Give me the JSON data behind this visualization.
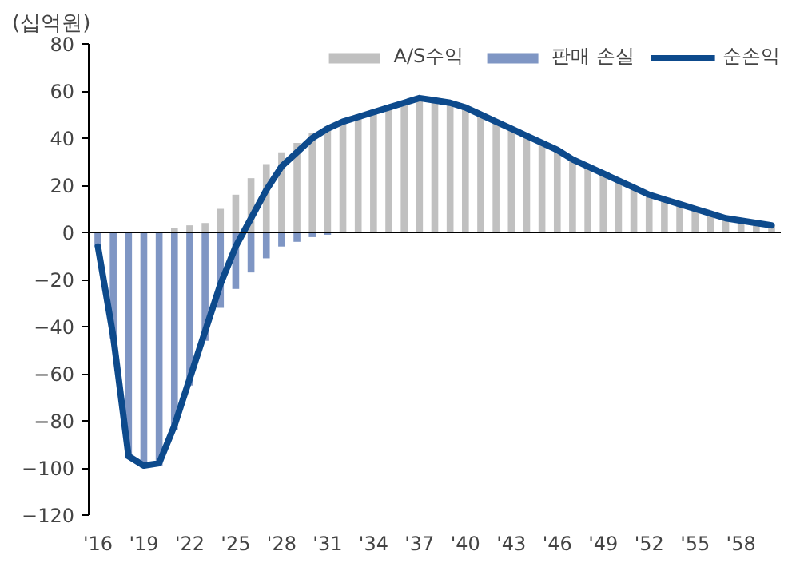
{
  "chart_data": {
    "type": "bar",
    "ylabel": "(십억원)",
    "categories": [
      "'16",
      null,
      null,
      "'19",
      null,
      null,
      "'22",
      null,
      null,
      "'25",
      null,
      null,
      "'28",
      null,
      null,
      "'31",
      null,
      null,
      "'34",
      null,
      null,
      "'37",
      null,
      null,
      "'40",
      null,
      null,
      "'43",
      null,
      null,
      "'46",
      null,
      null,
      "'49",
      null,
      null,
      "'52",
      null,
      null,
      "'55",
      null,
      null,
      "'58",
      null,
      null
    ],
    "series": [
      {
        "name": "A/S수익",
        "color": "#c0c0c0",
        "values": [
          null,
          null,
          null,
          null,
          null,
          2,
          3,
          4,
          10,
          16,
          23,
          29,
          34,
          38,
          42,
          45,
          48,
          50,
          52,
          54,
          55,
          56,
          55,
          54,
          53,
          50,
          47,
          44,
          41,
          38,
          35,
          31,
          28,
          25,
          22,
          19,
          16,
          14,
          12,
          10,
          8,
          7,
          5,
          4,
          3
        ]
      },
      {
        "name": "판매 손실",
        "color": "#7f96c4",
        "values": [
          -6,
          -45,
          -96,
          -100,
          -99,
          -84,
          -65,
          -46,
          -32,
          -24,
          -17,
          -11,
          -6,
          -4,
          -2,
          -1,
          null,
          null,
          null,
          null,
          null,
          null,
          null,
          null,
          null,
          null,
          null,
          null,
          null,
          null,
          null,
          null,
          null,
          null,
          null,
          null,
          null,
          null,
          null,
          null,
          null,
          null,
          null,
          null,
          null
        ]
      },
      {
        "name": "순손익",
        "type": "line",
        "color": "#0d4a8c",
        "values": [
          -6,
          -44,
          -95,
          -99,
          -98,
          -82,
          -62,
          -42,
          -22,
          -6,
          6,
          18,
          28,
          34,
          40,
          44,
          47,
          49,
          51,
          53,
          55,
          57,
          56,
          55,
          53,
          50,
          47,
          44,
          41,
          38,
          35,
          31,
          28,
          25,
          22,
          19,
          16,
          14,
          12,
          10,
          8,
          6,
          5,
          4,
          3
        ]
      }
    ],
    "ylim": [
      -120,
      80
    ],
    "yticks": [
      -120,
      -100,
      -80,
      -60,
      -40,
      -20,
      0,
      20,
      40,
      60,
      80
    ],
    "grid": false,
    "legend": "top right",
    "ref_lines": [
      {
        "axis": "y",
        "value": 0,
        "color": "#000000"
      }
    ]
  }
}
